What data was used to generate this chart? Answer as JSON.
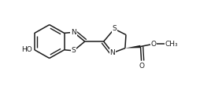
{
  "bg_color": "#ffffff",
  "line_color": "#1a1a1a",
  "line_width": 1.1,
  "font_size": 6.5,
  "figsize": [
    2.68,
    1.1
  ],
  "dpi": 100,
  "xlim": [
    0,
    268
  ],
  "ylim": [
    0,
    110
  ]
}
